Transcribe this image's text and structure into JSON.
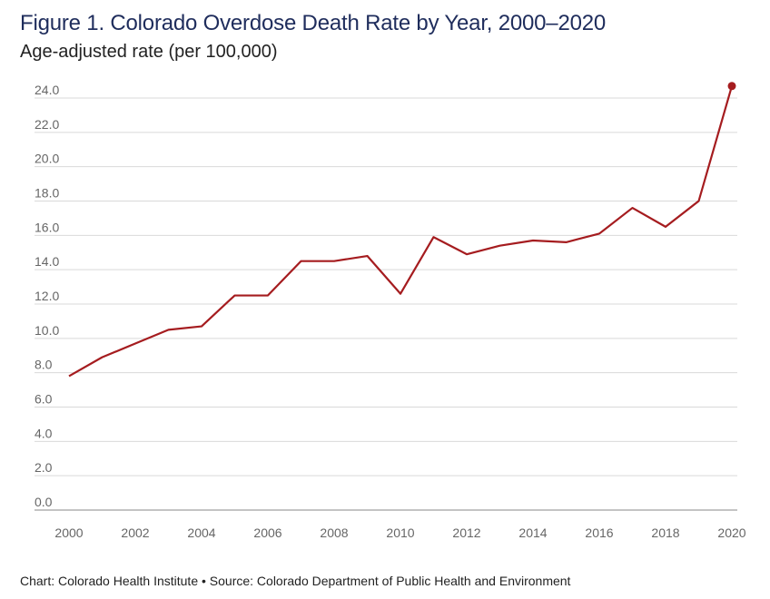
{
  "title": "Figure 1. Colorado Overdose Death Rate by Year, 2000–2020",
  "subtitle": "Age-adjusted rate (per 100,000)",
  "footnote": "Chart: Colorado Health Institute • Source: Colorado Department of Public Health and Environment",
  "colors": {
    "line": "#a51c1f",
    "grid": "#d9d9d9",
    "axis": "#b0b0b0",
    "title": "#1f2d5c"
  },
  "chart_data": {
    "type": "line",
    "title": "Figure 1. Colorado Overdose Death Rate by Year, 2000–2020",
    "subtitle": "Age-adjusted rate (per 100,000)",
    "xlabel": "",
    "ylabel": "",
    "x": [
      2000,
      2001,
      2002,
      2003,
      2004,
      2005,
      2006,
      2007,
      2008,
      2009,
      2010,
      2011,
      2012,
      2013,
      2014,
      2015,
      2016,
      2017,
      2018,
      2019,
      2020
    ],
    "series": [
      {
        "values": [
          7.8,
          8.9,
          9.7,
          10.5,
          10.7,
          12.5,
          12.5,
          14.5,
          14.5,
          14.8,
          12.6,
          15.9,
          14.9,
          15.4,
          15.7,
          15.6,
          16.1,
          17.6,
          16.5,
          18.0,
          24.7
        ]
      }
    ],
    "xticks": [
      "2000",
      "2002",
      "2004",
      "2006",
      "2008",
      "2010",
      "2012",
      "2014",
      "2016",
      "2018",
      "2020"
    ],
    "yticks": [
      "0.0",
      "2.0",
      "4.0",
      "6.0",
      "8.0",
      "10.0",
      "12.0",
      "14.0",
      "16.0",
      "18.0",
      "20.0",
      "22.0",
      "24.0"
    ],
    "xlim": [
      2000,
      2020
    ],
    "ylim": [
      0,
      24
    ],
    "grid": true,
    "highlight_last_point": true
  }
}
